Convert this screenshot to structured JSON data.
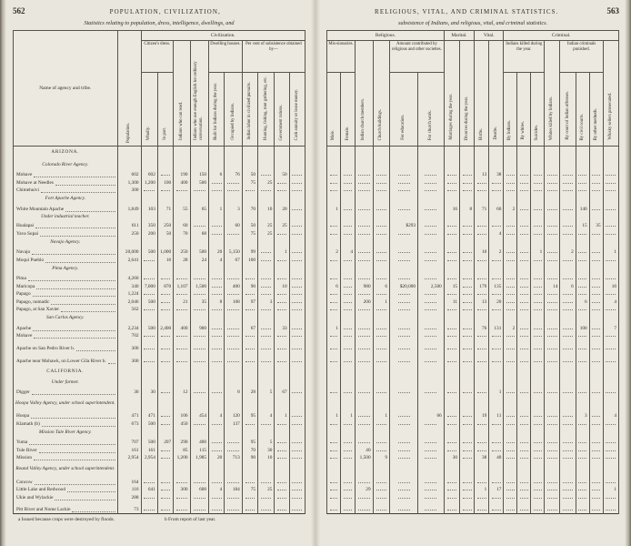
{
  "page_left": {
    "page_number": "562",
    "running_head": "POPULATION, CIVILIZATION,",
    "subtitle": "Statistics relating to population, dress, intelligence, dwellings, and",
    "footnotes": [
      "a Issued because crops were destroyed by floods.",
      "b From report of last year."
    ],
    "table": {
      "name_header": "Name of agency and tribe.",
      "population": "Population.",
      "civilization": "Civilization.",
      "dress": "Citizen's dress.",
      "dwelling": "Dwelling houses.",
      "subsistence": "Per cent of subsistence obtained by—",
      "cols": {
        "wholly": "Wholly.",
        "inpart": "In part.",
        "read": "Indians who can read.",
        "english": "Indians who use enough English for ordinary conversation.",
        "built": "Built for Indians during the year.",
        "occupied": "Occupied by Indians.",
        "labor": "Indian labor in civilized pursuits.",
        "hunting": "Hunting, fishing, root gathering, etc.",
        "rations": "Government rations.",
        "cash": "Cash annuity or lease money."
      }
    }
  },
  "page_right": {
    "page_number": "563",
    "running_head": "RELIGIOUS, VITAL, AND CRIMINAL STATISTICS.",
    "subtitle": "subsistence of Indians, and religious, vital, and criminal statistics.",
    "table": {
      "religious": "Religious.",
      "marital": "Marital.",
      "vital": "Vital.",
      "criminal": "Criminal.",
      "missionaries": "Mis-sionaries.",
      "contributed": "Amount contributed by religious and other societies.",
      "killed": "Indians killed during the year.",
      "punished": "Indian criminals punished.",
      "cols": {
        "male": "Male.",
        "female": "Female.",
        "members": "Indian church members.",
        "buildings": "Church buildings.",
        "educ": "For education.",
        "church": "For church work.",
        "marriages": "Marriages during the year.",
        "divorces": "Divorces during the year.",
        "births": "Births.",
        "deaths": "Deaths.",
        "by_indians": "By Indians.",
        "by_whites": "By whites.",
        "suicides": "Suicides.",
        "whites_killed": "Whites killed by Indians.",
        "court": "By court of Indian offenses.",
        "civil": "By civil courts.",
        "other": "By other methods.",
        "whisky": "Whisky sellers prosecuted."
      }
    }
  },
  "rows": [
    {
      "type": "state",
      "label": "ARIZONA."
    },
    {
      "type": "agency",
      "label": "Colorado River Agency."
    },
    {
      "type": "data",
      "label": "Mohave",
      "l": [
        "602",
        "602",
        "",
        "190",
        "150",
        "6",
        "76",
        "50",
        "",
        "50",
        ""
      ],
      "r": [
        "",
        "",
        "",
        "",
        "",
        "",
        "",
        "",
        "13",
        "38",
        "",
        "",
        "",
        "",
        "",
        "",
        "",
        ""
      ]
    },
    {
      "type": "data",
      "label": "Mohave at Needles",
      "l": [
        "1,300",
        "1,200",
        "100",
        "400",
        "500",
        "",
        "",
        "75",
        "25",
        "",
        ""
      ]
    },
    {
      "type": "data",
      "label": "Chimehuivi",
      "l": [
        "300",
        "",
        "",
        "",
        "",
        "",
        "",
        "",
        "",
        "",
        ""
      ]
    },
    {
      "type": "agency",
      "label": "Fort Apache Agency."
    },
    {
      "type": "data",
      "label": "White Mountain Apache",
      "l": [
        "1,849",
        "103",
        "71",
        "55",
        "65",
        "1",
        "3",
        "70",
        "10",
        "20",
        ""
      ],
      "r": [
        "1",
        "",
        "",
        "",
        "",
        "",
        "16",
        "8",
        "71",
        "60",
        "2",
        "",
        "",
        "",
        "",
        "140",
        "",
        ""
      ]
    },
    {
      "type": "subhead",
      "label": "Under industrial teacher."
    },
    {
      "type": "data",
      "label": "Hualapai",
      "l": [
        "611",
        "350",
        "250",
        "60",
        "",
        "",
        "60",
        "50",
        "25",
        "25",
        ""
      ],
      "r": [
        "",
        "",
        "",
        "",
        "$293",
        "",
        "",
        "",
        "",
        "",
        "",
        "",
        "",
        "",
        "",
        "15",
        "35",
        ""
      ]
    },
    {
      "type": "data",
      "label": "Yava Supai",
      "l": [
        "250",
        "200",
        "50",
        "70",
        "68",
        "",
        "",
        "75",
        "25",
        "",
        ""
      ],
      "r": [
        "",
        "",
        "",
        "",
        "",
        "",
        "",
        "",
        "",
        "4",
        "",
        "",
        "",
        "",
        "",
        "",
        "",
        ""
      ]
    },
    {
      "type": "agency",
      "label": "Navajo Agency."
    },
    {
      "type": "data",
      "label": "Navajo",
      "l": [
        "20,000",
        "500",
        "1,000",
        "250",
        "500",
        "20",
        "5,150",
        "99",
        "",
        "1",
        ""
      ],
      "r": [
        "2",
        "4",
        "",
        "",
        "",
        "",
        "",
        "",
        "10",
        "2",
        "",
        "",
        "1",
        "",
        "2",
        "",
        "",
        "1"
      ]
    },
    {
      "type": "data",
      "label": "Moqui Pueblo",
      "l": [
        "2,641",
        "",
        "16",
        "28",
        "24",
        "4",
        "67",
        "100",
        "",
        "",
        ""
      ]
    },
    {
      "type": "agency",
      "label": "Pima Agency."
    },
    {
      "type": "data",
      "label": "Pima",
      "l": [
        "4,260",
        "",
        "",
        "",
        "",
        "",
        "",
        "",
        "",
        "",
        ""
      ]
    },
    {
      "type": "data",
      "label": "Maricopa",
      "l": [
        "340",
        "7,000",
        "870",
        "1,107",
        "1,500",
        "",
        "400",
        "90",
        "",
        "10",
        ""
      ],
      "r": [
        "6",
        "",
        "980",
        "6",
        "$20,000",
        "2,500",
        "15",
        "",
        "179",
        "135",
        "",
        "",
        "",
        "14",
        "6",
        "",
        "",
        "16"
      ]
    },
    {
      "type": "data",
      "label": "Papago",
      "l": [
        "1,224",
        "",
        "",
        "",
        "",
        "",
        "",
        "",
        "",
        "",
        ""
      ]
    },
    {
      "type": "data",
      "label": "Papago, nomadic",
      "l": [
        "2,046",
        "500",
        "",
        "21",
        "35",
        "8",
        "108",
        "97",
        "3",
        "",
        ""
      ],
      "r": [
        "",
        "",
        "200",
        "1",
        "",
        "",
        "11",
        "",
        "13",
        "20",
        "",
        "",
        "",
        "",
        "",
        "6",
        "",
        "4"
      ]
    },
    {
      "type": "data",
      "label": "Papago, at San Xavier",
      "l": [
        "562",
        "",
        "",
        "",
        "",
        "",
        "",
        "",
        "",
        "",
        ""
      ]
    },
    {
      "type": "agency",
      "label": "San Carlos Agency."
    },
    {
      "type": "data",
      "label": "Apache",
      "l": [
        "2,234",
        "500",
        "2,400",
        "400",
        "900",
        "",
        "",
        "67",
        "",
        "33",
        ""
      ],
      "r": [
        "1",
        "",
        "",
        "",
        "",
        "",
        "",
        "",
        "76",
        "131",
        "2",
        "",
        "",
        "",
        "",
        "100",
        "",
        "7"
      ]
    },
    {
      "type": "data",
      "label": "Mohave",
      "l": [
        "702",
        "",
        "",
        "",
        "",
        "",
        "",
        "",
        "",
        "",
        ""
      ]
    },
    {
      "type": "data",
      "label": "Apache on San Pedro River b.",
      "l": [
        "300",
        "",
        "",
        "",
        "",
        "",
        "",
        "",
        "",
        "",
        ""
      ]
    },
    {
      "type": "data",
      "label": "Apache near Mohawk, on Lower Gila River b.",
      "l": [
        "300",
        "",
        "",
        "",
        "",
        "",
        "",
        "",
        "",
        "",
        ""
      ]
    },
    {
      "type": "state",
      "label": "CALIFORNIA."
    },
    {
      "type": "subhead",
      "label": "Under farmer."
    },
    {
      "type": "data",
      "label": "Digger",
      "l": [
        "30",
        "30",
        "",
        "12",
        "",
        "",
        "8",
        "28",
        "5",
        "67",
        ""
      ],
      "r": [
        "",
        "",
        "",
        "",
        "",
        "",
        "",
        "",
        "",
        "1",
        "",
        "",
        "",
        "",
        "",
        "",
        "",
        ""
      ]
    },
    {
      "type": "agency",
      "label": "Hoopa Valley Agency, under school superintendent."
    },
    {
      "type": "data",
      "label": "Hoopa",
      "l": [
        "471",
        "471",
        "",
        "106",
        "454",
        "4",
        "120",
        "95",
        "4",
        "1",
        ""
      ],
      "r": [
        "1",
        "1",
        "",
        "1",
        "",
        "66",
        "",
        "",
        "19",
        "11",
        "",
        "",
        "",
        "",
        "",
        "3",
        "",
        "4"
      ]
    },
    {
      "type": "data",
      "label": "Klamath (b)",
      "l": [
        "673",
        "500",
        "",
        "450",
        "",
        "",
        "137",
        "",
        "",
        "",
        ""
      ]
    },
    {
      "type": "agency",
      "label": "Mission Tule River Agency."
    },
    {
      "type": "data",
      "label": "Yuma",
      "l": [
        "707",
        "500",
        "207",
        "290",
        "400",
        "",
        "",
        "95",
        "5",
        "",
        ""
      ]
    },
    {
      "type": "data",
      "label": "Tule River",
      "l": [
        "161",
        "161",
        "",
        "85",
        "115",
        "",
        "",
        "70",
        "30",
        "",
        ""
      ],
      "r": [
        "",
        "",
        "40",
        "",
        "",
        "",
        "",
        "",
        "",
        "",
        "",
        "",
        "",
        "",
        "",
        "",
        "",
        ""
      ]
    },
    {
      "type": "data",
      "label": "Mission",
      "l": [
        "2,954",
        "2,954",
        "",
        "1,200",
        "1,985",
        "20",
        "713",
        "90",
        "10",
        "",
        ""
      ],
      "r": [
        "",
        "",
        "1,500",
        "9",
        "",
        "",
        "30",
        "",
        "38",
        "40",
        "",
        "",
        "",
        "",
        "",
        "",
        "",
        ""
      ]
    },
    {
      "type": "agency",
      "label": "Round Valley Agency, under school superintendent."
    },
    {
      "type": "data",
      "label": "Concow",
      "l": [
        "164",
        "",
        "",
        "",
        "",
        "",
        "",
        "",
        "",
        "",
        ""
      ]
    },
    {
      "type": "data",
      "label": "Little Lake and Redwood",
      "l": [
        "116",
        "641",
        "",
        "300",
        "600",
        "4",
        "184",
        "75",
        "25",
        "",
        ""
      ],
      "r": [
        "",
        "",
        "29",
        "",
        "",
        "",
        "",
        "",
        "1",
        "17",
        "",
        "",
        "",
        "",
        "",
        "",
        "",
        "1"
      ]
    },
    {
      "type": "data",
      "label": "Ukie and Wylackie",
      "l": [
        "288",
        "",
        "",
        "",
        "",
        "",
        "",
        "",
        "",
        "",
        ""
      ]
    },
    {
      "type": "data",
      "label": "Pitt River and Nome Lackie",
      "l": [
        "73",
        "",
        "",
        "",
        "",
        "",
        "",
        "",
        "",
        "",
        ""
      ]
    }
  ]
}
